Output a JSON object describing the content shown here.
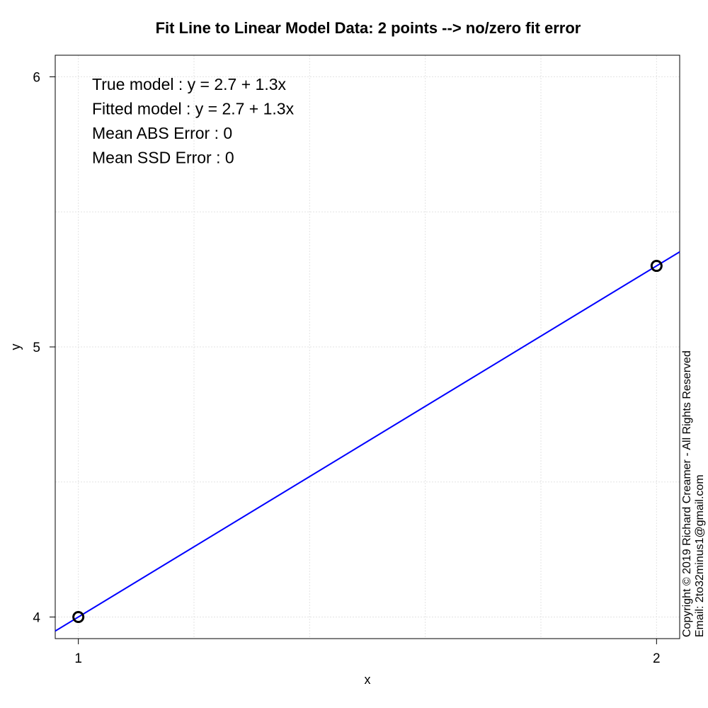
{
  "chart_data": {
    "type": "scatter",
    "title": "Fit Line to Linear Model Data: 2 points --> no/zero fit error",
    "xlabel": "x",
    "ylabel": "y",
    "x_ticks": [
      1,
      2
    ],
    "y_ticks": [
      4,
      5,
      6
    ],
    "xlim": [
      0.96,
      2.04
    ],
    "ylim": [
      3.92,
      6.08
    ],
    "grid": true,
    "points": [
      {
        "x": 1,
        "y": 4.0
      },
      {
        "x": 2,
        "y": 5.3
      }
    ],
    "fit_line": {
      "intercept": 2.7,
      "slope": 1.3,
      "color": "#0000ff"
    },
    "point_color": "#000000",
    "annotations": [
      "True model : y = 2.7 + 1.3x",
      "Fitted model : y = 2.7 + 1.3x",
      "Mean ABS Error : 0",
      "Mean SSD Error : 0"
    ],
    "copyright": [
      "Copyright © 2019 Richard Creamer - All Rights Reserved",
      "Email: 2to32minus1@gmail.com"
    ]
  }
}
